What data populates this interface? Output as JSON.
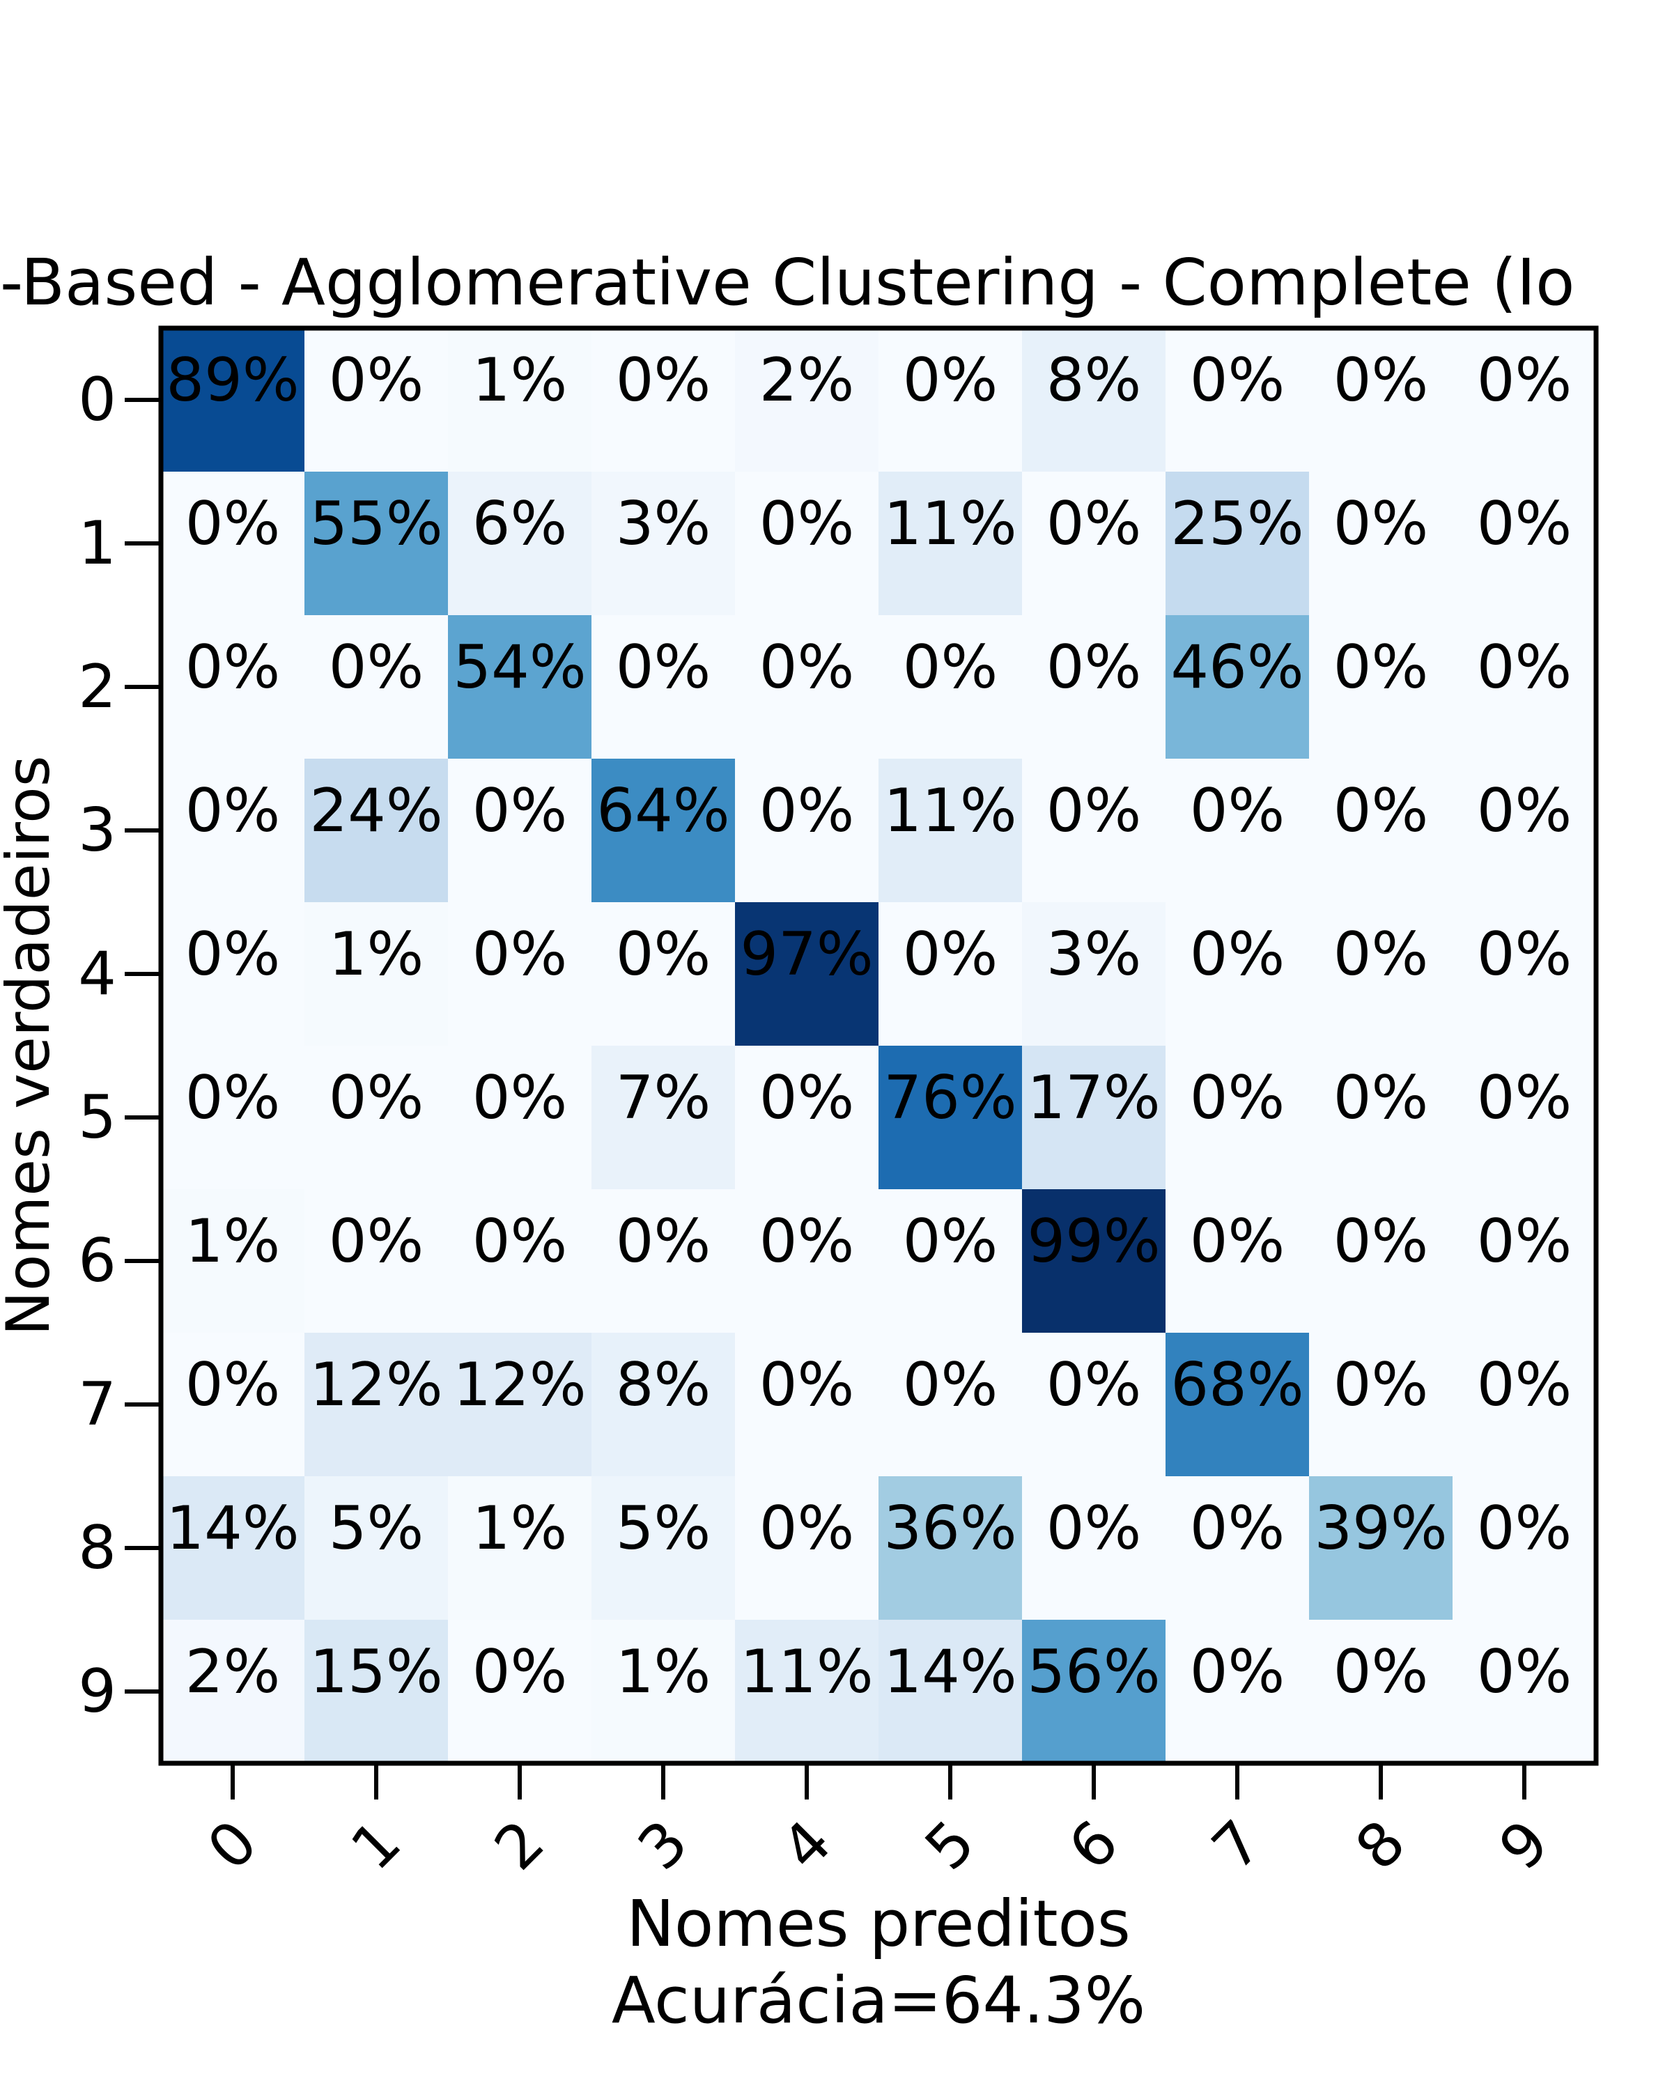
{
  "chart_data": {
    "type": "heatmap",
    "title": "-Based - Agglomerative Clustering - Complete (Io",
    "xlabel": "Nomes preditos",
    "ylabel": "Nomes verdadeiros",
    "footer": "Acurácia=64.3%",
    "x_categories": [
      "0",
      "1",
      "2",
      "3",
      "4",
      "5",
      "6",
      "7",
      "8",
      "9"
    ],
    "y_categories": [
      "0",
      "1",
      "2",
      "3",
      "4",
      "5",
      "6",
      "7",
      "8",
      "9"
    ],
    "values": [
      [
        89,
        0,
        1,
        0,
        2,
        0,
        8,
        0,
        0,
        0
      ],
      [
        0,
        55,
        6,
        3,
        0,
        11,
        0,
        25,
        0,
        0
      ],
      [
        0,
        0,
        54,
        0,
        0,
        0,
        0,
        46,
        0,
        0
      ],
      [
        0,
        24,
        0,
        64,
        0,
        11,
        0,
        0,
        0,
        0
      ],
      [
        0,
        1,
        0,
        0,
        97,
        0,
        3,
        0,
        0,
        0
      ],
      [
        0,
        0,
        0,
        7,
        0,
        76,
        17,
        0,
        0,
        0
      ],
      [
        1,
        0,
        0,
        0,
        0,
        0,
        99,
        0,
        0,
        0
      ],
      [
        0,
        12,
        12,
        8,
        0,
        0,
        0,
        68,
        0,
        0
      ],
      [
        14,
        5,
        1,
        5,
        0,
        36,
        0,
        0,
        39,
        0
      ],
      [
        2,
        15,
        0,
        1,
        11,
        14,
        56,
        0,
        0,
        0
      ]
    ],
    "value_suffix": "%",
    "colormap": "Blues",
    "colors": {
      "low": "#f7fbff",
      "high": "#08306b",
      "text_dark": "#000000",
      "text_light": "#ffffff"
    }
  }
}
